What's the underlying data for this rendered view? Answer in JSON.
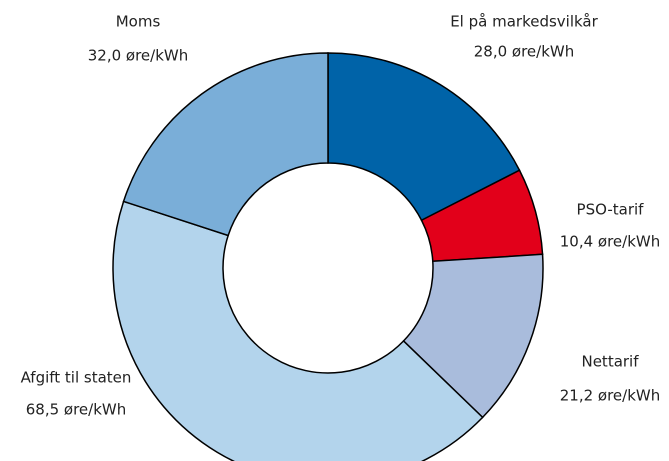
{
  "chart_data": {
    "type": "donut",
    "categories": [
      "El på markedsvilkår",
      "PSO-tarif",
      "Nettarif",
      "Afgift til staten",
      "Moms"
    ],
    "values": [
      28.0,
      10.4,
      21.2,
      68.5,
      32.0
    ],
    "value_labels": [
      "28,0 øre/kWh",
      "10,4 øre/kWh",
      "21,2 øre/kWh",
      "68,5 øre/kWh",
      "32,0 øre/kWh"
    ],
    "colors": [
      "#0063a8",
      "#e2001a",
      "#a9bcdc",
      "#b3d4ec",
      "#7aaed8"
    ]
  }
}
